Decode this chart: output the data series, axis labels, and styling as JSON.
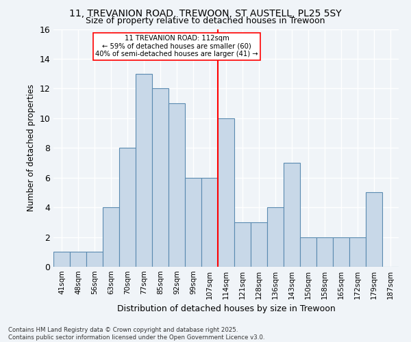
{
  "title": "11, TREVANION ROAD, TREWOON, ST AUSTELL, PL25 5SY",
  "subtitle": "Size of property relative to detached houses in Trewoon",
  "xlabel": "Distribution of detached houses by size in Trewoon",
  "ylabel": "Number of detached properties",
  "categories": [
    "41sqm",
    "48sqm",
    "56sqm",
    "63sqm",
    "70sqm",
    "77sqm",
    "85sqm",
    "92sqm",
    "99sqm",
    "107sqm",
    "114sqm",
    "121sqm",
    "128sqm",
    "136sqm",
    "143sqm",
    "150sqm",
    "158sqm",
    "165sqm",
    "172sqm",
    "179sqm",
    "187sqm"
  ],
  "values": [
    1,
    1,
    1,
    4,
    8,
    13,
    12,
    11,
    6,
    6,
    10,
    3,
    3,
    4,
    7,
    2,
    2,
    2,
    2,
    5,
    0
  ],
  "bar_color": "#c8d8e8",
  "bar_edgecolor": "#5a8ab0",
  "bar_linewidth": 0.8,
  "background_color": "#f0f4f8",
  "grid_color": "#ffffff",
  "ylim": [
    0,
    16
  ],
  "yticks": [
    0,
    2,
    4,
    6,
    8,
    10,
    12,
    14,
    16
  ],
  "red_line_x": 9.5,
  "annotation_text": "11 TREVANION ROAD: 112sqm\n← 59% of detached houses are smaller (60)\n40% of semi-detached houses are larger (41) →",
  "footnote1": "Contains HM Land Registry data © Crown copyright and database right 2025.",
  "footnote2": "Contains public sector information licensed under the Open Government Licence v3.0."
}
